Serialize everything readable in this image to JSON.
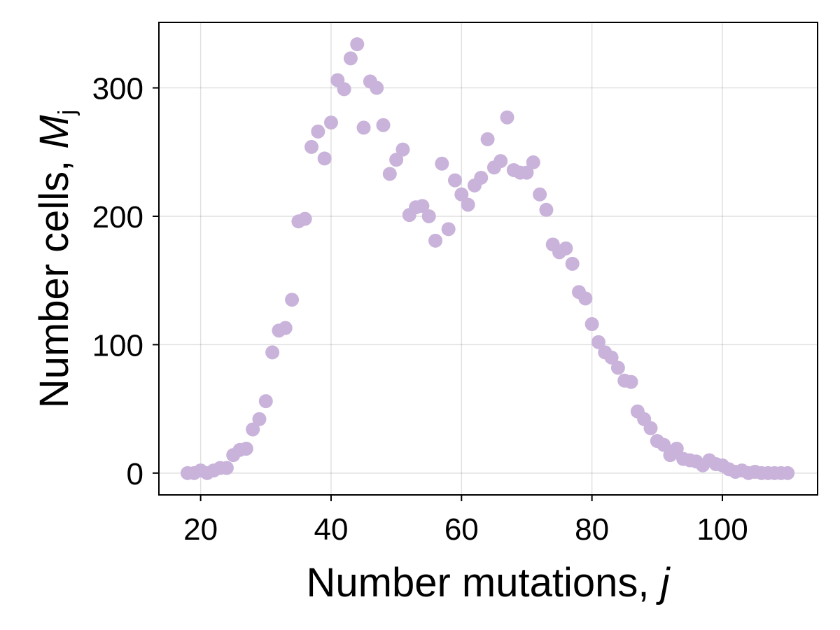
{
  "chart_data": {
    "type": "scatter",
    "xlabel": {
      "text": "Number mutations, ",
      "var": "j"
    },
    "ylabel": {
      "text": "Number cells, ",
      "var": "M",
      "sub": "j"
    },
    "xlim": [
      13.6,
      114.6
    ],
    "ylim": [
      -17,
      351
    ],
    "xticks": [
      20,
      40,
      60,
      80,
      100
    ],
    "yticks": [
      0,
      100,
      200,
      300
    ],
    "grid": true,
    "marker_color": "#c9b3da",
    "series": [
      {
        "x": [
          18,
          19,
          20,
          21,
          22,
          23,
          24,
          25,
          26,
          27,
          28,
          29,
          30,
          31,
          32,
          33,
          34,
          35,
          36,
          37,
          38,
          39,
          40,
          41,
          42,
          43,
          44,
          45,
          46,
          47,
          48,
          49,
          50,
          51,
          52,
          53,
          54,
          55,
          56,
          57,
          58,
          59,
          60,
          61,
          62,
          63,
          64,
          65,
          66,
          67,
          68,
          69,
          70,
          71,
          72,
          73,
          74,
          75,
          76,
          77,
          78,
          79,
          80,
          81,
          82,
          83,
          84,
          85,
          86,
          87,
          88,
          89,
          90,
          91,
          92,
          93,
          94,
          95,
          96,
          97,
          98,
          99,
          100,
          101,
          102,
          103,
          104,
          105,
          106,
          107,
          108,
          109,
          110
        ],
        "y": [
          0,
          0,
          2,
          0,
          2,
          4,
          4,
          14,
          18,
          19,
          34,
          42,
          56,
          94,
          111,
          113,
          135,
          196,
          198,
          254,
          266,
          245,
          273,
          306,
          299,
          323,
          334,
          269,
          305,
          300,
          271,
          233,
          244,
          252,
          201,
          207,
          208,
          200,
          181,
          241,
          190,
          228,
          217,
          209,
          224,
          230,
          260,
          238,
          243,
          277,
          236,
          234,
          234,
          242,
          217,
          205,
          178,
          172,
          175,
          163,
          141,
          136,
          116,
          102,
          94,
          90,
          82,
          72,
          71,
          48,
          42,
          35,
          25,
          22,
          14,
          19,
          11,
          10,
          9,
          6,
          10,
          7,
          6,
          3,
          1,
          2,
          0,
          1,
          0,
          0,
          0,
          0,
          0
        ]
      }
    ]
  }
}
